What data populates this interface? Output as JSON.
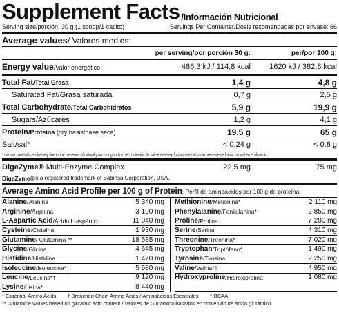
{
  "header": {
    "title": "Supplement Facts",
    "subtitle": "/Información Nutricional",
    "serving_size": "Serving size/porción: 30 g (1 scoop/1 cacito)",
    "servings": "Servings Per Container/Dosis recomendadas por envase: 66"
  },
  "average": {
    "title": "Average values",
    "title_local": " / Valores medios:",
    "col1": "per serving/por porción 30 g:",
    "col2": "per/por 100 g:"
  },
  "nutrients": [
    {
      "name": "Energy value",
      "local": "/Valor energético:",
      "per_serving": "486,3 kJ / 114,8 kcal",
      "per_100g": "1620 kJ / 382,8 kcal"
    },
    {
      "name": "Total Fat",
      "local": "/Total Grasa",
      "per_serving": "1,4 g",
      "per_100g": "4,8 g"
    },
    {
      "name": "Saturated Fat/Grasa saturada",
      "per_serving": "0,7 g",
      "per_100g": "2,5 g"
    },
    {
      "name": "Total Carbohydrate",
      "local": "/Total Carbohidratos",
      "per_serving": "5,9 g",
      "per_100g": "19,9 g"
    },
    {
      "name": "Sugars/Azúcares",
      "per_serving": "1,2 g",
      "per_100g": "4,1 g"
    },
    {
      "name": "Protein",
      "local": "/Proteína",
      "note": " (dry basis/base seca)",
      "per_serving": "19,5 g",
      "per_100g": "65 g"
    },
    {
      "name": "Salt/sal*",
      "per_serving": "< 0,24 g",
      "per_100g": "< 0,8 g"
    }
  ],
  "salt_note": "* the salt content is exclusively due to the presence of naturally occurring sodium./el contenido de sal se debe exclusivamente al sodio presente de forma natural en el alimento",
  "enzyme": {
    "name": "DigeZyme®",
    "rest": " Multi-Enzyme Complex",
    "per_serving": "22,5 mg",
    "per_100g": "75 mg",
    "tm_name": "DigeZyme®",
    "tm_text": " is a registered trademark of Sabinsa Corporation, USA."
  },
  "amino": {
    "title": "Average Amino Acid Profile per 100 g of Protein",
    "title_local": ": Perfil de aminoácidos por 100 g de proteína:",
    "left": [
      {
        "name": "Alanine",
        "local": "/Alanina",
        "value": "5 340 mg"
      },
      {
        "name": "Arginine",
        "local": "/Arginina",
        "value": "3 100 mg"
      },
      {
        "name": "L-Aspartic Acid",
        "local": "/Ácido L-aspártico",
        "value": "11 040 mg"
      },
      {
        "name": "Cysteine",
        "local": "/Cisteína",
        "value": "1 930 mg"
      },
      {
        "name": "Glutamine",
        "local": "/ Glutamina **",
        "value": "18 535 mg"
      },
      {
        "name": "Glycine",
        "local": "/Glicina",
        "value": "4 645 mg"
      },
      {
        "name": "Histidine",
        "local": "/Histidina",
        "value": "1 470 mg"
      },
      {
        "name": "Isoleucine",
        "local": "/Isoleucina*†",
        "value": "5 580 mg"
      },
      {
        "name": "Leucine",
        "local": "/Leucina*†",
        "value": "9 120 mg"
      },
      {
        "name": "Lysine",
        "local": "/Lisina*",
        "value": "8 440 mg"
      }
    ],
    "right": [
      {
        "name": "Methionine",
        "local": "/Metionina*",
        "value": "2 110 mg"
      },
      {
        "name": "Phenylalanine",
        "local": "/Fenilalanina*",
        "value": "2 850 mg"
      },
      {
        "name": "Proline",
        "local": "/Prolina",
        "value": "7 200 mg"
      },
      {
        "name": "Serine",
        "local": "/Serina",
        "value": "4 310 mg"
      },
      {
        "name": "Threonine",
        "local": "/Treonina*",
        "value": "7 020 mg"
      },
      {
        "name": "Tryptophan",
        "local": "/Triptófano*",
        "value": "1 490 mg"
      },
      {
        "name": "Tyrosine",
        "local": "/Tirosina",
        "value": "2 250 mg"
      },
      {
        "name": "Valine",
        "local": "/Valina*†",
        "value": "4 950 mg"
      },
      {
        "name": "Hydroxyproline",
        "local": "/Hidroxiprolina",
        "value": "1 080 mg"
      }
    ],
    "footnotes": [
      "* Essential Amino Acids",
      "† Branched Chain Amino Acids / Aminoácidos Esenciales",
      "† BCAA",
      "** Glutamine values based on glutamic acid content / Valores de Glutamina basados en contenido de ácido glutámico"
    ]
  }
}
